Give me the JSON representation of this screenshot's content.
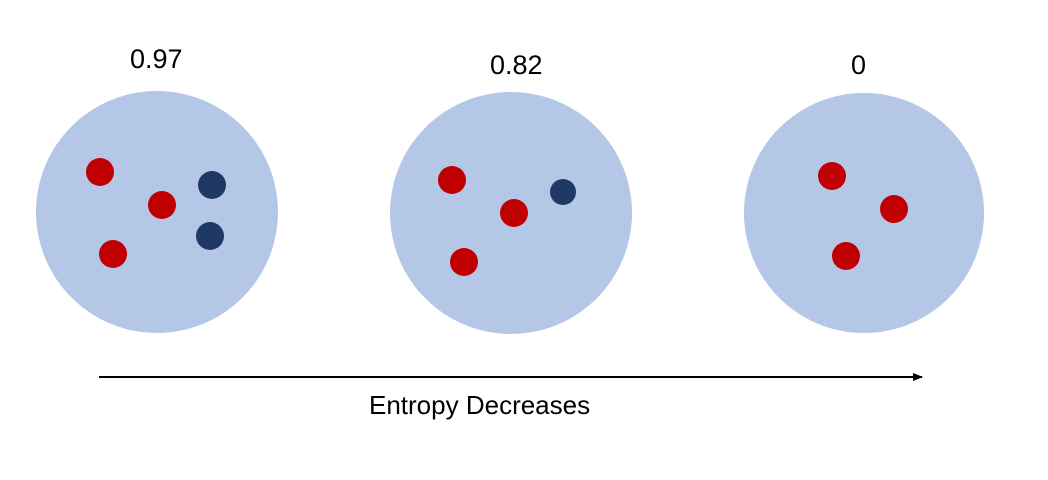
{
  "colors": {
    "circle_fill": "#b4c7e7",
    "red_ball": "#c00000",
    "blue_ball": "#203864",
    "arrow": "#000000"
  },
  "circles": [
    {
      "entropy": "0.97",
      "red_count": 3,
      "blue_count": 2
    },
    {
      "entropy": "0.82",
      "red_count": 3,
      "blue_count": 1
    },
    {
      "entropy": "0",
      "red_count": 3,
      "blue_count": 0
    }
  ],
  "arrow": {
    "label": "Entropy Decreases",
    "direction": "right"
  }
}
